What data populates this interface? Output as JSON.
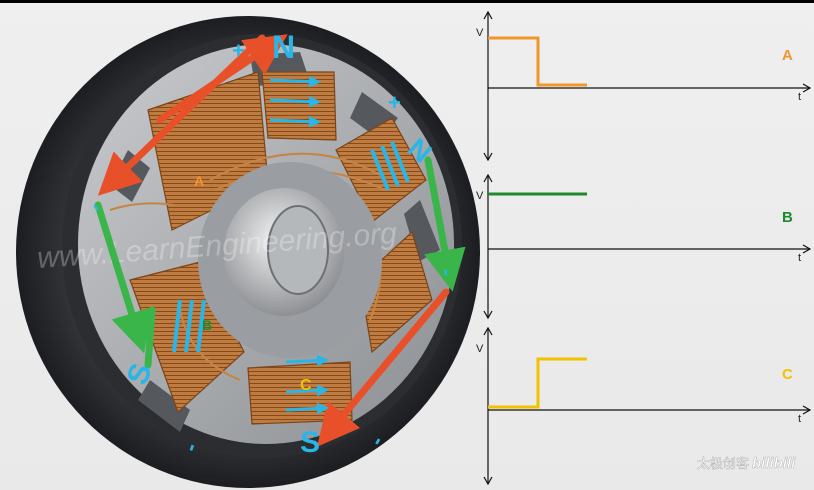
{
  "colors": {
    "phase_a": "#f0962c",
    "phase_b": "#1e8a2e",
    "phase_c": "#f2c200",
    "pole_label": "#29b6e6",
    "field_arrow": "#e8502a",
    "current_arrow": "#3ab54a",
    "coil": "#b8733a",
    "axis": "#111111"
  },
  "motor": {
    "coil_labels": {
      "a": "A",
      "b": "B",
      "c": "C"
    },
    "poles": {
      "north_top": "N",
      "north_right": "N",
      "south_left": "S",
      "south_bottom": "S"
    },
    "marks": [
      "+",
      "+",
      "-",
      "-",
      "-",
      "-"
    ],
    "watermark": "www.LearnEngineering.org"
  },
  "graphs": [
    {
      "id": "A",
      "label": "A",
      "y_axis": "V",
      "x_axis": "t",
      "color_key": "phase_a",
      "levels": [
        1,
        0
      ]
    },
    {
      "id": "B",
      "label": "B",
      "y_axis": "V",
      "x_axis": "t",
      "color_key": "phase_b",
      "levels": [
        1,
        1
      ]
    },
    {
      "id": "C",
      "label": "C",
      "y_axis": "V",
      "x_axis": "t",
      "color_key": "phase_c",
      "levels": [
        0,
        1
      ]
    }
  ],
  "brand": {
    "channel": "太极创客",
    "site": "bilibili"
  }
}
